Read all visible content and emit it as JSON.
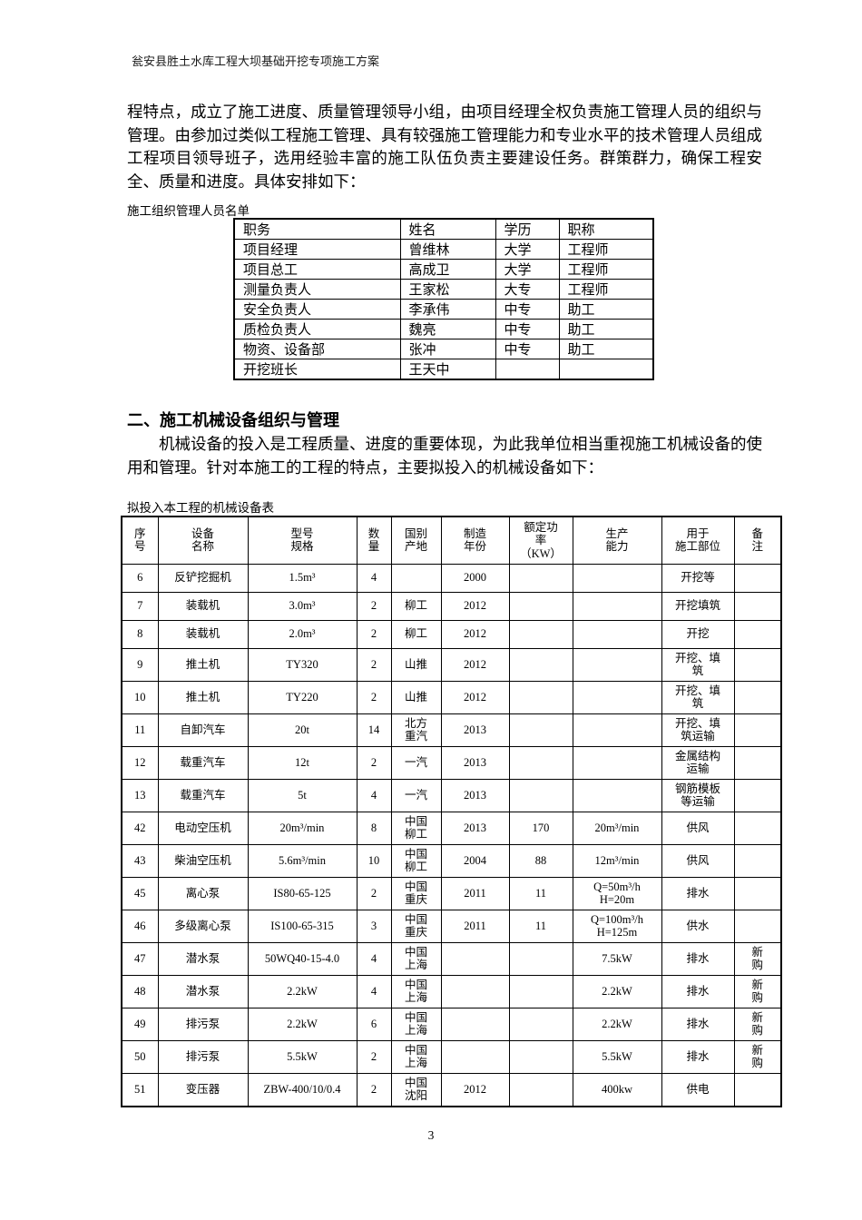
{
  "doc": {
    "header": "瓮安县胜土水库工程大坝基础开挖专项施工方案",
    "page_number": "3"
  },
  "section1": {
    "paragraph": "程特点，成立了施工进度、质量管理领导小组，由项目经理全权负责施工管理人员的组织与管理。由参加过类似工程施工管理、具有较强施工管理能力和专业水平的技术管理人员组成工程项目领导班子，选用经验丰富的施工队伍负责主要建设任务。群策群力，确保工程安全、质量和进度。具体安排如下：",
    "table_caption": "施工组织管理人员名单",
    "personnel_table": {
      "headers": [
        "职务",
        "姓名",
        "学历",
        "职称"
      ],
      "rows": [
        [
          "项目经理",
          "曾维林",
          "大学",
          "工程师"
        ],
        [
          "项目总工",
          "高成卫",
          "大学",
          "工程师"
        ],
        [
          "测量负责人",
          "王家松",
          "大专",
          "工程师"
        ],
        [
          "安全负责人",
          "李承伟",
          "中专",
          "助工"
        ],
        [
          "质检负责人",
          "魏亮",
          "中专",
          "助工"
        ],
        [
          "物资、设备部",
          "张冲",
          "中专",
          "助工"
        ],
        [
          "开挖班长",
          "王天中",
          "",
          ""
        ]
      ]
    }
  },
  "section2": {
    "heading": "二、施工机械设备组织与管理",
    "paragraph": "机械设备的投入是工程质量、进度的重要体现，为此我单位相当重视施工机械设备的使用和管理。针对本施工的工程的特点，主要拟投入的机械设备如下：",
    "table_caption": "拟投入本工程的机械设备表",
    "equipment_table": {
      "headers": [
        "序\n号",
        "设备\n名称",
        "型号\n规格",
        "数\n量",
        "国别\n产地",
        "制造\n年份",
        "额定功\n率\n（KW）",
        "生产\n能力",
        "用于\n施工部位",
        "备\n注"
      ],
      "rows": [
        [
          "6",
          "反铲挖掘机",
          "1.5m³",
          "4",
          "",
          "2000",
          "",
          "",
          "开挖等",
          ""
        ],
        [
          "7",
          "装载机",
          "3.0m³",
          "2",
          "柳工",
          "2012",
          "",
          "",
          "开挖填筑",
          ""
        ],
        [
          "8",
          "装载机",
          "2.0m³",
          "2",
          "柳工",
          "2012",
          "",
          "",
          "开挖",
          ""
        ],
        [
          "9",
          "推土机",
          "TY320",
          "2",
          "山推",
          "2012",
          "",
          "",
          "开挖、填\n筑",
          ""
        ],
        [
          "10",
          "推土机",
          "TY220",
          "2",
          "山推",
          "2012",
          "",
          "",
          "开挖、填\n筑",
          ""
        ],
        [
          "11",
          "自卸汽车",
          "20t",
          "14",
          "北方\n重汽",
          "2013",
          "",
          "",
          "开挖、填\n筑运输",
          ""
        ],
        [
          "12",
          "载重汽车",
          "12t",
          "2",
          "一汽",
          "2013",
          "",
          "",
          "金属结构\n运输",
          ""
        ],
        [
          "13",
          "载重汽车",
          "5t",
          "4",
          "一汽",
          "2013",
          "",
          "",
          "钢筋模板\n等运输",
          ""
        ],
        [
          "42",
          "电动空压机",
          "20m³/min",
          "8",
          "中国\n柳工",
          "2013",
          "170",
          "20m³/min",
          "供风",
          ""
        ],
        [
          "43",
          "柴油空压机",
          "5.6m³/min",
          "10",
          "中国\n柳工",
          "2004",
          "88",
          "12m³/min",
          "供风",
          ""
        ],
        [
          "45",
          "离心泵",
          "IS80-65-125",
          "2",
          "中国\n重庆",
          "2011",
          "11",
          "Q=50m³/h\nH=20m",
          "排水",
          ""
        ],
        [
          "46",
          "多级离心泵",
          "IS100-65-315",
          "3",
          "中国\n重庆",
          "2011",
          "11",
          "Q=100m³/h\nH=125m",
          "供水",
          ""
        ],
        [
          "47",
          "潜水泵",
          "50WQ40-15-4.0",
          "4",
          "中国\n上海",
          "",
          "",
          "7.5kW",
          "排水",
          "新\n购"
        ],
        [
          "48",
          "潜水泵",
          "2.2kW",
          "4",
          "中国\n上海",
          "",
          "",
          "2.2kW",
          "排水",
          "新\n购"
        ],
        [
          "49",
          "排污泵",
          "2.2kW",
          "6",
          "中国\n上海",
          "",
          "",
          "2.2kW",
          "排水",
          "新\n购"
        ],
        [
          "50",
          "排污泵",
          "5.5kW",
          "2",
          "中国\n上海",
          "",
          "",
          "5.5kW",
          "排水",
          "新\n购"
        ],
        [
          "51",
          "变压器",
          "ZBW-400/10/0.4",
          "2",
          "中国\n沈阳",
          "2012",
          "",
          "400kw",
          "供电",
          ""
        ]
      ]
    }
  }
}
